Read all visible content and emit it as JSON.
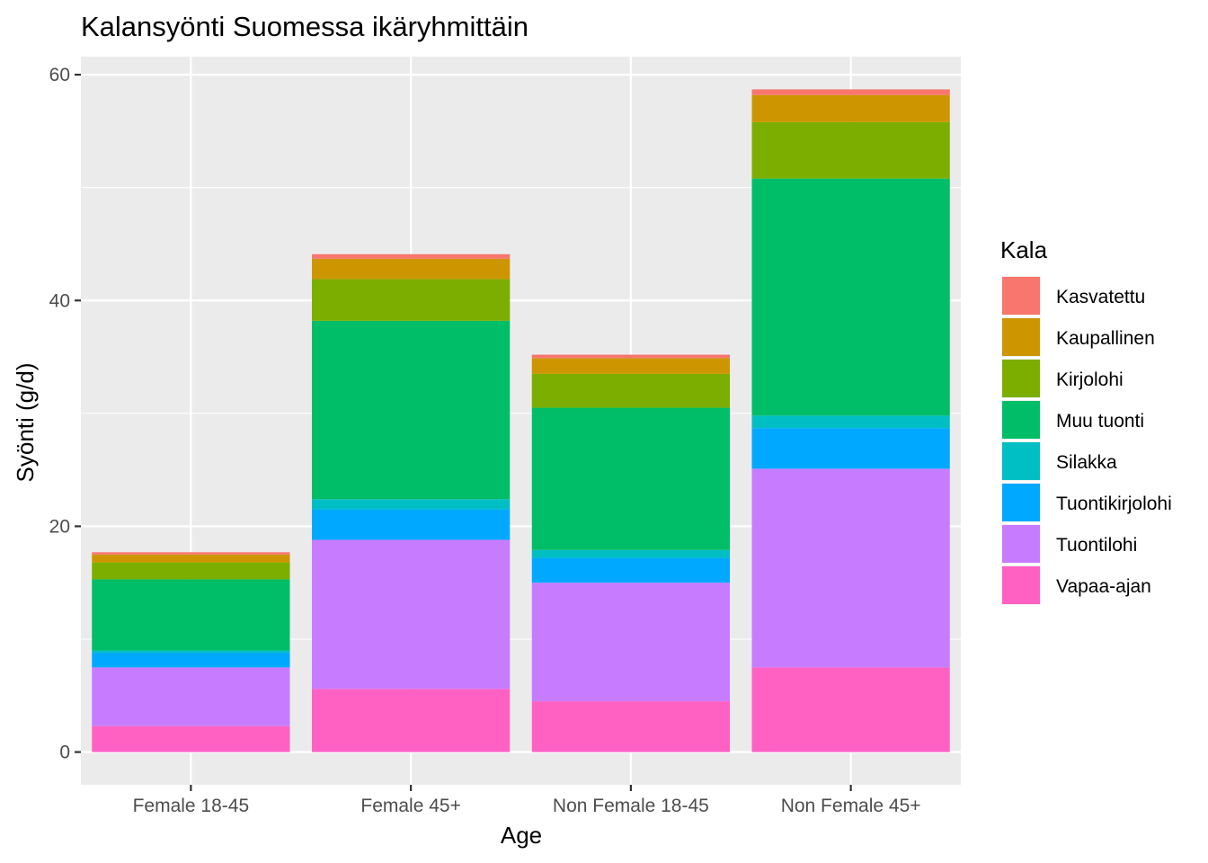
{
  "chart_data": {
    "type": "bar",
    "stacked": true,
    "title": "Kalansyönti Suomessa ikäryhmittäin",
    "xlabel": "Age",
    "ylabel": "Syönti (g/d)",
    "ylim": [
      -2.9,
      61.6
    ],
    "yticks": [
      0,
      20,
      40,
      60
    ],
    "grid": true,
    "legend_title": "Kala",
    "legend_position": "right",
    "categories": [
      "Female 18-45",
      "Female 45+",
      "Non Female 18-45",
      "Non Female 45+"
    ],
    "series": [
      {
        "name": "Vapaa-ajan",
        "color": "#FF61C3",
        "values": [
          2.3,
          5.6,
          4.5,
          7.5
        ]
      },
      {
        "name": "Tuontilohi",
        "color": "#C77CFF",
        "values": [
          5.2,
          13.2,
          10.5,
          17.6
        ]
      },
      {
        "name": "Tuontikirjolohi",
        "color": "#00A9FF",
        "values": [
          1.3,
          2.7,
          2.2,
          3.6
        ]
      },
      {
        "name": "Silakka",
        "color": "#00BFC4",
        "values": [
          0.2,
          0.9,
          0.7,
          1.1
        ]
      },
      {
        "name": "Muu tuonti",
        "color": "#00BE67",
        "values": [
          6.3,
          15.8,
          12.6,
          21.0
        ]
      },
      {
        "name": "Kirjolohi",
        "color": "#7CAE00",
        "values": [
          1.5,
          3.7,
          3.0,
          5.0
        ]
      },
      {
        "name": "Kaupallinen",
        "color": "#CD9600",
        "values": [
          0.7,
          1.8,
          1.4,
          2.4
        ]
      },
      {
        "name": "Kasvatettu",
        "color": "#F8766D",
        "values": [
          0.2,
          0.4,
          0.3,
          0.5
        ]
      }
    ],
    "legend_order": [
      "Kasvatettu",
      "Kaupallinen",
      "Kirjolohi",
      "Muu tuonti",
      "Silakka",
      "Tuontikirjolohi",
      "Tuontilohi",
      "Vapaa-ajan"
    ]
  }
}
